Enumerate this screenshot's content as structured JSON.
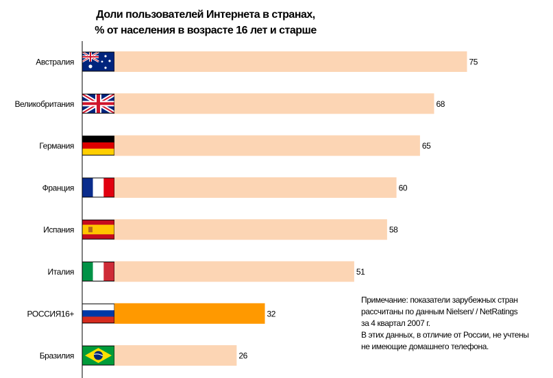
{
  "chart_data": {
    "type": "bar",
    "orientation": "horizontal",
    "title": "Доли пользователей Интернета в странах,",
    "subtitle": "% от населения в возрасте 16 лет и старше",
    "categories": [
      "Австралия",
      "Великобритания",
      "Германия",
      "Франция",
      "Испания",
      "Италия",
      "РОССИЯ16+",
      "Бразилия"
    ],
    "values": [
      75,
      68,
      65,
      60,
      58,
      51,
      32,
      26
    ],
    "data_labels": [
      "75",
      "68",
      "65",
      "60",
      "58",
      "51",
      "32",
      "26"
    ],
    "flags": [
      "australia-flag",
      "uk-flag",
      "germany-flag",
      "france-flag",
      "spain-flag",
      "italy-flag",
      "russia-flag",
      "brazil-flag"
    ],
    "bar_color": "#FCD5B4",
    "highlight_color": "#FF9900",
    "highlight_index": 6,
    "xlim": [
      0,
      80
    ],
    "grid": false,
    "legend": "none"
  },
  "note": {
    "lines": [
      "Примечание: показатели зарубежных стран",
      "рассчитаны по данным Nielsen/ / NetRatings",
      "за 4 квартал 2007 г.",
      "В этих данных, в отличие от России, не учтены",
      "не имеющие домашнего телефона."
    ]
  }
}
